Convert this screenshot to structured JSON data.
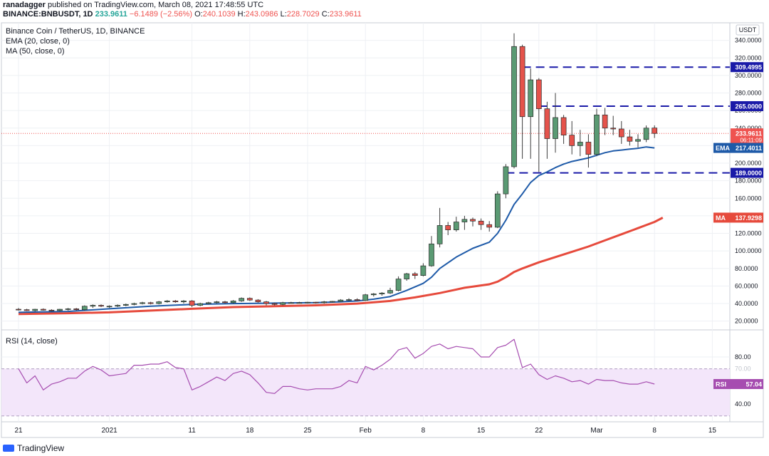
{
  "header": {
    "publisher": "ranadagger",
    "published_text": "published on TradingView.com, March 08, 2021 17:48:55 UTC",
    "symbol": "BINANCE:BNBUSDT, 1D",
    "last": "233.9611",
    "change": "−6.1489 (−2.56%)",
    "open_label": "O:",
    "open": "240.1039",
    "high_label": "H:",
    "high": "243.0986",
    "low_label": "L:",
    "low": "228.7029",
    "close_label": "C:",
    "close": "233.9611"
  },
  "legend": {
    "title": "Binance Coin / TetherUS, 1D, BINANCE",
    "ema": "EMA (20, close, 0)",
    "ma": "MA (50, close, 0)",
    "rsi": "RSI (14, close)"
  },
  "footer": {
    "brand": "TradingView"
  },
  "colors": {
    "up": "#5a9a73",
    "down": "#e5534b",
    "ema": "#1e5aa8",
    "ma": "#e64a3c",
    "rsi": "#a64db0",
    "rsi_band": "#f3e6fa",
    "level": "#1a1aa8"
  },
  "chart_data": [
    {
      "type": "candlestick",
      "price_unit_label": "USDT",
      "ylim": [
        10,
        360
      ],
      "y_ticks": [
        "20.0000",
        "40.0000",
        "60.0000",
        "80.0000",
        "100.0000",
        "120.0000",
        "140.0000",
        "160.0000",
        "180.0000",
        "200.0000",
        "220.0000",
        "240.0000",
        "260.0000",
        "280.0000",
        "300.0000",
        "320.0000",
        "340.0000"
      ],
      "x_ticks": [
        {
          "label": "21",
          "day": -11
        },
        {
          "label": "2021",
          "day": 0
        },
        {
          "label": "11",
          "day": 10
        },
        {
          "label": "18",
          "day": 17
        },
        {
          "label": "25",
          "day": 24
        },
        {
          "label": "Feb",
          "day": 31
        },
        {
          "label": "8",
          "day": 38
        },
        {
          "label": "15",
          "day": 45
        },
        {
          "label": "22",
          "day": 52
        },
        {
          "label": "Mar",
          "day": 59
        },
        {
          "label": "8",
          "day": 66
        },
        {
          "label": "15",
          "day": 73
        }
      ],
      "candles": [
        {
          "d": -11,
          "o": 33.5,
          "h": 35,
          "l": 32,
          "c": 33
        },
        {
          "d": -10,
          "o": 33,
          "h": 34,
          "l": 31.5,
          "c": 32
        },
        {
          "d": -9,
          "o": 32,
          "h": 34,
          "l": 31,
          "c": 33.5
        },
        {
          "d": -8,
          "o": 33.5,
          "h": 34.5,
          "l": 32,
          "c": 32.5
        },
        {
          "d": -7,
          "o": 32.5,
          "h": 33.5,
          "l": 31,
          "c": 32
        },
        {
          "d": -6,
          "o": 32,
          "h": 34,
          "l": 31,
          "c": 33.5
        },
        {
          "d": -5,
          "o": 33.5,
          "h": 35,
          "l": 32,
          "c": 34
        },
        {
          "d": -4,
          "o": 34,
          "h": 35,
          "l": 32,
          "c": 33
        },
        {
          "d": -3,
          "o": 33,
          "h": 38,
          "l": 32,
          "c": 37
        },
        {
          "d": -2,
          "o": 37,
          "h": 39,
          "l": 35,
          "c": 38
        },
        {
          "d": -1,
          "o": 38,
          "h": 39,
          "l": 36,
          "c": 37
        },
        {
          "d": 0,
          "o": 37,
          "h": 38,
          "l": 35,
          "c": 37
        },
        {
          "d": 1,
          "o": 37,
          "h": 39,
          "l": 36,
          "c": 38
        },
        {
          "d": 2,
          "o": 38,
          "h": 40,
          "l": 37,
          "c": 39
        },
        {
          "d": 3,
          "o": 39,
          "h": 41,
          "l": 38,
          "c": 40
        },
        {
          "d": 4,
          "o": 40,
          "h": 42,
          "l": 39,
          "c": 41
        },
        {
          "d": 5,
          "o": 41,
          "h": 42,
          "l": 39,
          "c": 40
        },
        {
          "d": 6,
          "o": 40,
          "h": 43,
          "l": 39,
          "c": 42
        },
        {
          "d": 7,
          "o": 42,
          "h": 44,
          "l": 41,
          "c": 43
        },
        {
          "d": 8,
          "o": 43,
          "h": 44,
          "l": 41,
          "c": 42
        },
        {
          "d": 9,
          "o": 42,
          "h": 44,
          "l": 40,
          "c": 43
        },
        {
          "d": 10,
          "o": 43,
          "h": 44,
          "l": 36,
          "c": 38
        },
        {
          "d": 11,
          "o": 38,
          "h": 41,
          "l": 37,
          "c": 40
        },
        {
          "d": 12,
          "o": 40,
          "h": 42,
          "l": 39,
          "c": 41
        },
        {
          "d": 13,
          "o": 41,
          "h": 43,
          "l": 40,
          "c": 42
        },
        {
          "d": 14,
          "o": 42,
          "h": 43,
          "l": 40,
          "c": 41
        },
        {
          "d": 15,
          "o": 41,
          "h": 44,
          "l": 40,
          "c": 43
        },
        {
          "d": 16,
          "o": 43,
          "h": 47,
          "l": 42,
          "c": 46
        },
        {
          "d": 17,
          "o": 46,
          "h": 47,
          "l": 43,
          "c": 44
        },
        {
          "d": 18,
          "o": 44,
          "h": 45,
          "l": 41,
          "c": 42
        },
        {
          "d": 19,
          "o": 42,
          "h": 43,
          "l": 38,
          "c": 40
        },
        {
          "d": 20,
          "o": 40,
          "h": 41,
          "l": 38,
          "c": 39
        },
        {
          "d": 21,
          "o": 39,
          "h": 42,
          "l": 38,
          "c": 41
        },
        {
          "d": 22,
          "o": 41,
          "h": 42,
          "l": 40,
          "c": 41
        },
        {
          "d": 23,
          "o": 41,
          "h": 42,
          "l": 40,
          "c": 41
        },
        {
          "d": 24,
          "o": 41,
          "h": 42,
          "l": 40,
          "c": 41.5
        },
        {
          "d": 25,
          "o": 41.5,
          "h": 42,
          "l": 40,
          "c": 41
        },
        {
          "d": 26,
          "o": 41,
          "h": 43,
          "l": 40,
          "c": 42
        },
        {
          "d": 27,
          "o": 42,
          "h": 43,
          "l": 41,
          "c": 42.5
        },
        {
          "d": 28,
          "o": 42.5,
          "h": 45,
          "l": 42,
          "c": 44
        },
        {
          "d": 29,
          "o": 44,
          "h": 46,
          "l": 43,
          "c": 44.5
        },
        {
          "d": 30,
          "o": 44.5,
          "h": 46,
          "l": 43,
          "c": 43.5
        },
        {
          "d": 31,
          "o": 43.5,
          "h": 51,
          "l": 43,
          "c": 50
        },
        {
          "d": 32,
          "o": 50,
          "h": 52,
          "l": 48,
          "c": 51
        },
        {
          "d": 33,
          "o": 51,
          "h": 53,
          "l": 49,
          "c": 52
        },
        {
          "d": 34,
          "o": 52,
          "h": 58,
          "l": 51,
          "c": 55
        },
        {
          "d": 35,
          "o": 55,
          "h": 71,
          "l": 54,
          "c": 68
        },
        {
          "d": 36,
          "o": 68,
          "h": 75,
          "l": 66,
          "c": 74
        },
        {
          "d": 37,
          "o": 74,
          "h": 76,
          "l": 68,
          "c": 72
        },
        {
          "d": 38,
          "o": 72,
          "h": 86,
          "l": 71,
          "c": 83
        },
        {
          "d": 39,
          "o": 83,
          "h": 117,
          "l": 82,
          "c": 108
        },
        {
          "d": 40,
          "o": 108,
          "h": 149,
          "l": 104,
          "c": 129
        },
        {
          "d": 41,
          "o": 129,
          "h": 133,
          "l": 118,
          "c": 124
        },
        {
          "d": 42,
          "o": 124,
          "h": 139,
          "l": 122,
          "c": 133
        },
        {
          "d": 43,
          "o": 133,
          "h": 140,
          "l": 124,
          "c": 136
        },
        {
          "d": 44,
          "o": 136,
          "h": 138,
          "l": 128,
          "c": 134
        },
        {
          "d": 45,
          "o": 134,
          "h": 137,
          "l": 124,
          "c": 130
        },
        {
          "d": 46,
          "o": 130,
          "h": 134,
          "l": 122,
          "c": 127
        },
        {
          "d": 47,
          "o": 127,
          "h": 168,
          "l": 126,
          "c": 165
        },
        {
          "d": 48,
          "o": 165,
          "h": 199,
          "l": 160,
          "c": 196
        },
        {
          "d": 49,
          "o": 196,
          "h": 348,
          "l": 194,
          "c": 333
        },
        {
          "d": 50,
          "o": 333,
          "h": 335,
          "l": 205,
          "c": 253
        },
        {
          "d": 51,
          "o": 253,
          "h": 308,
          "l": 205,
          "c": 295
        },
        {
          "d": 52,
          "o": 295,
          "h": 297,
          "l": 190,
          "c": 262
        },
        {
          "d": 53,
          "o": 262,
          "h": 270,
          "l": 205,
          "c": 228
        },
        {
          "d": 54,
          "o": 228,
          "h": 280,
          "l": 212,
          "c": 252
        },
        {
          "d": 55,
          "o": 252,
          "h": 255,
          "l": 222,
          "c": 232
        },
        {
          "d": 56,
          "o": 232,
          "h": 248,
          "l": 210,
          "c": 220
        },
        {
          "d": 57,
          "o": 220,
          "h": 238,
          "l": 208,
          "c": 224
        },
        {
          "d": 58,
          "o": 224,
          "h": 233,
          "l": 195,
          "c": 210
        },
        {
          "d": 59,
          "o": 210,
          "h": 262,
          "l": 208,
          "c": 255
        },
        {
          "d": 60,
          "o": 255,
          "h": 263,
          "l": 232,
          "c": 240
        },
        {
          "d": 61,
          "o": 240,
          "h": 254,
          "l": 232,
          "c": 239
        },
        {
          "d": 62,
          "o": 239,
          "h": 248,
          "l": 222,
          "c": 230
        },
        {
          "d": 63,
          "o": 230,
          "h": 238,
          "l": 220,
          "c": 225
        },
        {
          "d": 64,
          "o": 225,
          "h": 233,
          "l": 218,
          "c": 227
        },
        {
          "d": 65,
          "o": 227,
          "h": 243,
          "l": 224,
          "c": 240
        },
        {
          "d": 66,
          "o": 240.1,
          "h": 243.1,
          "l": 228.7,
          "c": 233.96
        }
      ],
      "ema": [
        [
          -11,
          30
        ],
        [
          -5,
          31
        ],
        [
          0,
          34
        ],
        [
          5,
          37
        ],
        [
          10,
          39
        ],
        [
          15,
          40
        ],
        [
          20,
          40.5
        ],
        [
          25,
          41
        ],
        [
          28,
          42
        ],
        [
          30,
          43
        ],
        [
          32,
          45
        ],
        [
          34,
          48
        ],
        [
          36,
          55
        ],
        [
          38,
          63
        ],
        [
          39,
          70
        ],
        [
          40,
          80
        ],
        [
          42,
          93
        ],
        [
          44,
          103
        ],
        [
          46,
          110
        ],
        [
          47,
          120
        ],
        [
          48,
          135
        ],
        [
          49,
          153
        ],
        [
          50,
          165
        ],
        [
          51,
          178
        ],
        [
          52,
          186
        ],
        [
          53,
          190
        ],
        [
          54,
          195
        ],
        [
          55,
          199
        ],
        [
          56,
          202
        ],
        [
          57,
          204
        ],
        [
          58,
          206
        ],
        [
          59,
          209
        ],
        [
          60,
          212
        ],
        [
          61,
          214
        ],
        [
          62,
          215
        ],
        [
          63,
          216
        ],
        [
          64,
          217
        ],
        [
          65,
          218.5
        ],
        [
          66,
          217.4
        ]
      ],
      "ma": [
        [
          -11,
          28
        ],
        [
          -5,
          29
        ],
        [
          0,
          30
        ],
        [
          5,
          32
        ],
        [
          10,
          34
        ],
        [
          15,
          36
        ],
        [
          20,
          37
        ],
        [
          25,
          38
        ],
        [
          30,
          40
        ],
        [
          34,
          43
        ],
        [
          37,
          47
        ],
        [
          40,
          52
        ],
        [
          43,
          58
        ],
        [
          46,
          62
        ],
        [
          47,
          65
        ],
        [
          48,
          70
        ],
        [
          49,
          76
        ],
        [
          50,
          80
        ],
        [
          52,
          87
        ],
        [
          54,
          93
        ],
        [
          56,
          99
        ],
        [
          58,
          105
        ],
        [
          60,
          112
        ],
        [
          62,
          119
        ],
        [
          64,
          126
        ],
        [
          66,
          133
        ],
        [
          67,
          137.93
        ]
      ],
      "levels": [
        {
          "value": 309.4995,
          "label": "309.4995"
        },
        {
          "value": 265.0,
          "label": "265.0000"
        },
        {
          "value": 189.0,
          "label": "189.0000"
        }
      ],
      "last_price": {
        "value": 233.9611,
        "label": "233.9611",
        "countdown": "06:11:09"
      },
      "ema_last": {
        "value": 217.4011,
        "name": "EMA",
        "label": "217.4011"
      },
      "ma_last": {
        "value": 137.9298,
        "name": "MA",
        "label": "137.9298"
      }
    },
    {
      "type": "line",
      "ylim": [
        25,
        103
      ],
      "y_ticks": [
        "40.00",
        "80.00"
      ],
      "band": [
        30,
        70
      ],
      "band_label_upper": "70.00",
      "last": {
        "value": 57.04,
        "name": "RSI",
        "label": "57.04"
      },
      "values": [
        [
          -11,
          70
        ],
        [
          -10,
          58
        ],
        [
          -9,
          64
        ],
        [
          -8,
          52
        ],
        [
          -7,
          57
        ],
        [
          -6,
          59
        ],
        [
          -5,
          62
        ],
        [
          -4,
          62
        ],
        [
          -3,
          68
        ],
        [
          -2,
          72
        ],
        [
          -1,
          69
        ],
        [
          0,
          64
        ],
        [
          1,
          65
        ],
        [
          2,
          66
        ],
        [
          3,
          73
        ],
        [
          4,
          73
        ],
        [
          5,
          74
        ],
        [
          6,
          74
        ],
        [
          7,
          76
        ],
        [
          8,
          71
        ],
        [
          9,
          70
        ],
        [
          10,
          52
        ],
        [
          11,
          55
        ],
        [
          12,
          59
        ],
        [
          13,
          63
        ],
        [
          14,
          60
        ],
        [
          15,
          66
        ],
        [
          16,
          68
        ],
        [
          17,
          65
        ],
        [
          18,
          58
        ],
        [
          19,
          50
        ],
        [
          20,
          49
        ],
        [
          21,
          55
        ],
        [
          22,
          55
        ],
        [
          23,
          53
        ],
        [
          24,
          52
        ],
        [
          25,
          53
        ],
        [
          26,
          53
        ],
        [
          27,
          53
        ],
        [
          28,
          55
        ],
        [
          29,
          60
        ],
        [
          30,
          58
        ],
        [
          31,
          72
        ],
        [
          32,
          69
        ],
        [
          33,
          73
        ],
        [
          34,
          78
        ],
        [
          35,
          86
        ],
        [
          36,
          88
        ],
        [
          37,
          79
        ],
        [
          38,
          83
        ],
        [
          39,
          89
        ],
        [
          40,
          91
        ],
        [
          41,
          87
        ],
        [
          42,
          89
        ],
        [
          43,
          88
        ],
        [
          44,
          87
        ],
        [
          45,
          80
        ],
        [
          46,
          80
        ],
        [
          47,
          88
        ],
        [
          48,
          90
        ],
        [
          49,
          95
        ],
        [
          50,
          71
        ],
        [
          51,
          74
        ],
        [
          52,
          65
        ],
        [
          53,
          61
        ],
        [
          54,
          64
        ],
        [
          55,
          62
        ],
        [
          56,
          59
        ],
        [
          57,
          60
        ],
        [
          58,
          57
        ],
        [
          59,
          61
        ],
        [
          60,
          60
        ],
        [
          61,
          60
        ],
        [
          62,
          58
        ],
        [
          63,
          57
        ],
        [
          64,
          57
        ],
        [
          65,
          59
        ],
        [
          66,
          57.04
        ]
      ]
    }
  ]
}
